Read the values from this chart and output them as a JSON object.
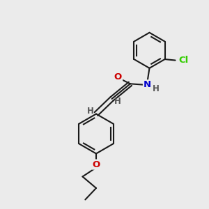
{
  "background_color": "#ebebeb",
  "bond_color": "#1a1a1a",
  "atom_colors": {
    "O": "#cc0000",
    "N": "#0000cc",
    "Cl": "#33cc00",
    "H": "#555555",
    "C": "#1a1a1a"
  },
  "figsize": [
    3.0,
    3.0
  ],
  "dpi": 100,
  "xlim": [
    0,
    10
  ],
  "ylim": [
    0,
    10
  ]
}
